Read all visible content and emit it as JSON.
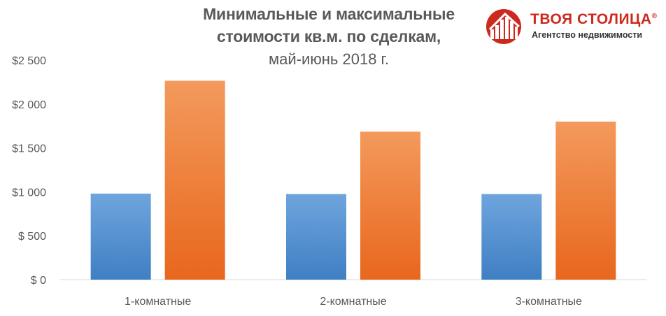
{
  "chart_data": {
    "type": "bar",
    "title_line1": "Минимальные и максимальные",
    "title_line2": "стоимости кв.м. по сделкам,",
    "subtitle": "май-июнь 2018 г.",
    "categories": [
      "1-комнатные",
      "2-комнатные",
      "3-комнатные"
    ],
    "series": [
      {
        "values": [
          980,
          975,
          975
        ],
        "color_top": "#6fa5dd",
        "color_bottom": "#3f7fc3"
      },
      {
        "values": [
          2265,
          1685,
          1800
        ],
        "color_top": "#f39a5c",
        "color_bottom": "#e8671d"
      }
    ],
    "yticks": [
      {
        "value": 0,
        "label": "$ 0"
      },
      {
        "value": 500,
        "label": "$ 500"
      },
      {
        "value": 1000,
        "label": "$1 000"
      },
      {
        "value": 1500,
        "label": "$1 500"
      },
      {
        "value": 2000,
        "label": "$2 000"
      },
      {
        "value": 2500,
        "label": "$2 500"
      }
    ],
    "ylim": [
      0,
      2500
    ],
    "grid": false,
    "legend": "none"
  },
  "logo": {
    "name": "ТВОЯ СТОЛИЦА",
    "registered": "®",
    "tagline": "Агентство недвижимости",
    "color": "#cc2a1f"
  }
}
